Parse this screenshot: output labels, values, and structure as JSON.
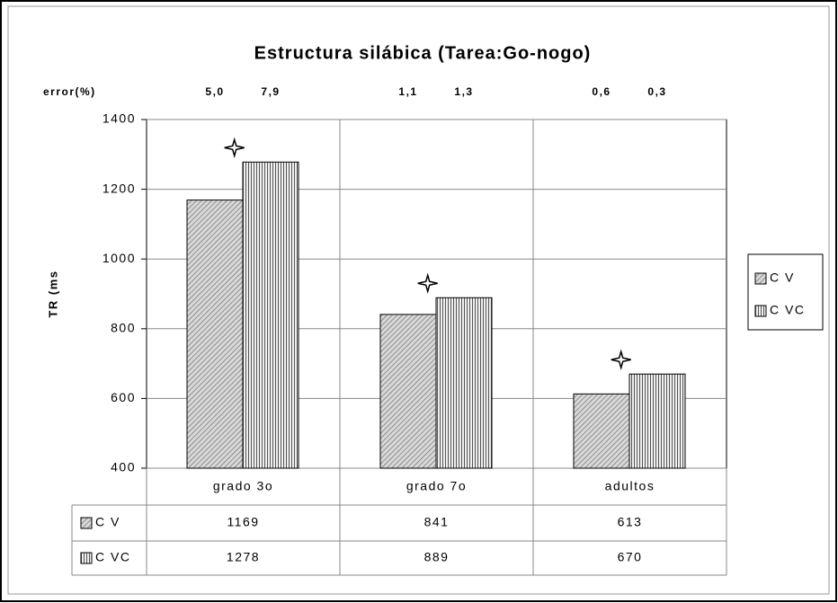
{
  "chart_data": {
    "type": "bar",
    "title": "Estructura silábica (Tarea:Go-nogo)",
    "ylabel": "TR (ms",
    "error_label": "error(%)",
    "categories": [
      "grado 3o",
      "grado 7o",
      "adultos"
    ],
    "series": [
      {
        "name": "C V",
        "color": "#b0b0b0",
        "values": [
          1169,
          841,
          613
        ],
        "error_labels": [
          "5,0",
          "1,1",
          "0,6"
        ]
      },
      {
        "name": "C VC",
        "color": "#c8c8c8",
        "values": [
          1278,
          889,
          670
        ],
        "error_labels": [
          "7,9",
          "1,3",
          "0,3"
        ]
      }
    ],
    "ylim": [
      400,
      1400
    ],
    "yticks": [
      400,
      600,
      800,
      1000,
      1200,
      1400
    ],
    "grid": true
  }
}
